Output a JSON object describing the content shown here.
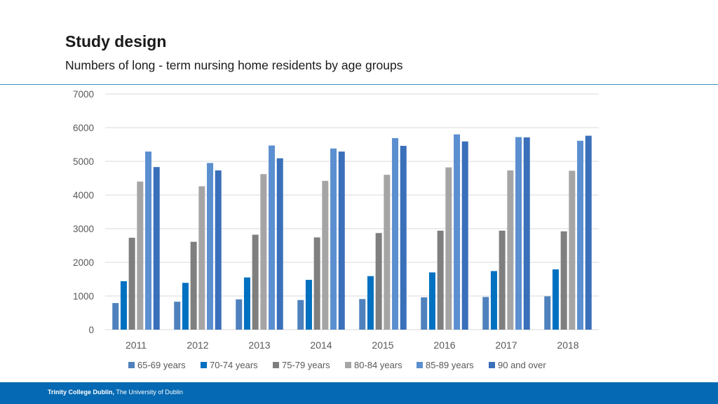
{
  "header": {
    "title": "Study design",
    "subtitle": "Numbers of long - term nursing home residents by age groups"
  },
  "footer": {
    "institution": "Trinity College Dublin,",
    "university": "The University of Dublin"
  },
  "colors": {
    "header_rule": "#3d8fc0",
    "footer_bg": "#0569b3",
    "gridline": "#d9d9d9",
    "axis_text": "#595959"
  },
  "chart_data": {
    "type": "bar",
    "title": "",
    "xlabel": "",
    "ylabel": "",
    "categories": [
      "2011",
      "2012",
      "2013",
      "2014",
      "2015",
      "2016",
      "2017",
      "2018"
    ],
    "ylim": [
      0,
      7000
    ],
    "yticks": [
      0,
      1000,
      2000,
      3000,
      4000,
      5000,
      6000,
      7000
    ],
    "grid": true,
    "legend_position": "bottom",
    "series": [
      {
        "name": "65-69 years",
        "color": "#4f81bd",
        "values": [
          790,
          830,
          900,
          880,
          910,
          960,
          970,
          990
        ]
      },
      {
        "name": "70-74 years",
        "color": "#0070c0",
        "values": [
          1440,
          1390,
          1550,
          1480,
          1590,
          1700,
          1740,
          1790
        ]
      },
      {
        "name": "75-79 years",
        "color": "#7f7f7f",
        "values": [
          2730,
          2610,
          2820,
          2740,
          2870,
          2940,
          2940,
          2920
        ]
      },
      {
        "name": "80-84 years",
        "color": "#a5a5a5",
        "values": [
          4400,
          4260,
          4620,
          4420,
          4600,
          4820,
          4730,
          4720
        ]
      },
      {
        "name": "85-89 years",
        "color": "#5b8fd0",
        "values": [
          5290,
          4950,
          5470,
          5380,
          5690,
          5800,
          5720,
          5610
        ]
      },
      {
        "name": "90 and over",
        "color": "#3a6fba",
        "values": [
          4830,
          4730,
          5090,
          5290,
          5460,
          5590,
          5710,
          5760
        ]
      }
    ]
  }
}
